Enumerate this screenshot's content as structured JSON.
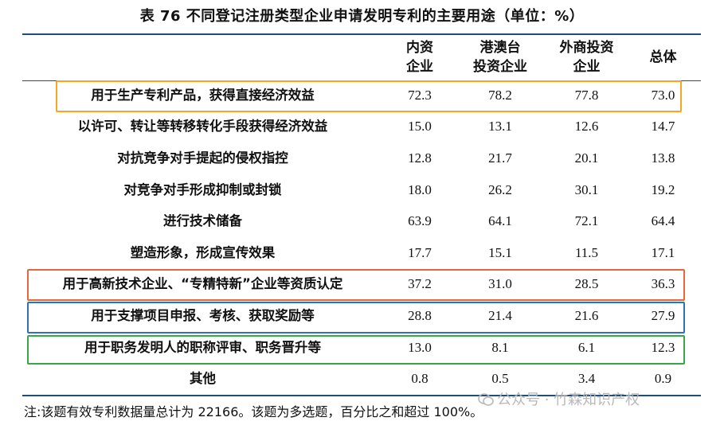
{
  "title": "表 76  不同登记注册类型企业申请发明专利的主要用途（单位：%）",
  "columns": [
    {
      "line1": "内资",
      "line2": "企业"
    },
    {
      "line1": "港澳台",
      "line2": "投资企业"
    },
    {
      "line1": "外商投资",
      "line2": "企业"
    },
    {
      "line1": "总体",
      "line2": ""
    }
  ],
  "rows": [
    {
      "label": "用于生产专利产品，获得直接经济效益",
      "values": [
        "72.3",
        "78.2",
        "77.8",
        "73.0"
      ]
    },
    {
      "label": "以许可、转让等转移转化手段获得经济效益",
      "values": [
        "15.0",
        "13.1",
        "12.6",
        "14.7"
      ]
    },
    {
      "label": "对抗竞争对手提起的侵权指控",
      "values": [
        "12.8",
        "21.7",
        "20.1",
        "13.8"
      ]
    },
    {
      "label": "对竞争对手形成抑制或封锁",
      "values": [
        "18.0",
        "26.2",
        "30.1",
        "19.2"
      ]
    },
    {
      "label": "进行技术储备",
      "values": [
        "63.9",
        "64.1",
        "72.1",
        "64.4"
      ]
    },
    {
      "label": "塑造形象，形成宣传效果",
      "values": [
        "17.7",
        "15.1",
        "11.5",
        "17.1"
      ]
    },
    {
      "label": "用于高新技术企业、“专精特新”企业等资质认定",
      "values": [
        "37.2",
        "31.0",
        "28.5",
        "36.3"
      ]
    },
    {
      "label": "用于支撑项目申报、考核、获取奖励等",
      "values": [
        "28.8",
        "21.4",
        "21.6",
        "27.9"
      ]
    },
    {
      "label": "用于职务发明人的职称评审、职务晋升等",
      "values": [
        "13.0",
        "8.1",
        "6.1",
        "12.3"
      ]
    },
    {
      "label": "其他",
      "values": [
        "0.8",
        "0.5",
        "3.4",
        "0.9"
      ]
    }
  ],
  "highlights": {
    "orange": "#f5a623",
    "red": "#e8663d",
    "blue": "#2e74b5",
    "green": "#3aa64a"
  },
  "note": "注:该题有效专利数据量总计为 22166。该题为多选题，百分比之和超过 100%。",
  "watermark": {
    "icon": "wechat-icon",
    "text": "公众号 · 竹森知识产权"
  }
}
